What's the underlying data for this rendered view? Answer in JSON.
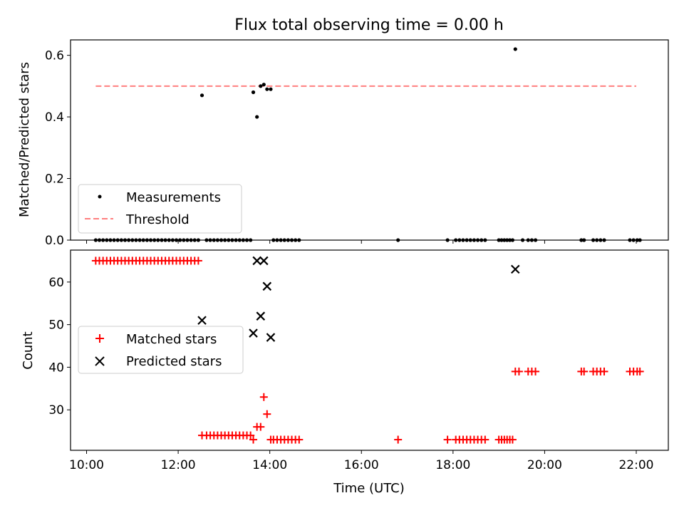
{
  "title": "Flux total observing time = 0.00 h",
  "colors": {
    "measure": "#000000",
    "threshold": "#ff7f7f",
    "matched": "#ff0000",
    "predicted": "#000000"
  },
  "chart_data": [
    {
      "type": "scatter",
      "title": "Flux total observing time = 0.00 h",
      "xlabel": "",
      "ylabel": "Matched/Predicted stars",
      "xlim": [
        9.65,
        22.7
      ],
      "ylim": [
        0,
        0.65
      ],
      "yticks": [
        0.0,
        0.2,
        0.4,
        0.6
      ],
      "ytick_labels": [
        "0.0",
        "0.2",
        "0.4",
        "0.6"
      ],
      "xticks": [
        10,
        12,
        14,
        16,
        18,
        20,
        22
      ],
      "legend_placement": "lower-left",
      "threshold": {
        "name": "Threshold",
        "y": 0.5,
        "x_range": [
          10.2,
          22.0
        ]
      },
      "series": [
        {
          "name": "Measurements",
          "points": [
            [
              10.2,
              0
            ],
            [
              10.28,
              0
            ],
            [
              10.36,
              0
            ],
            [
              10.44,
              0
            ],
            [
              10.52,
              0
            ],
            [
              10.6,
              0
            ],
            [
              10.68,
              0
            ],
            [
              10.76,
              0
            ],
            [
              10.84,
              0
            ],
            [
              10.92,
              0
            ],
            [
              11.0,
              0
            ],
            [
              11.08,
              0
            ],
            [
              11.16,
              0
            ],
            [
              11.24,
              0
            ],
            [
              11.32,
              0
            ],
            [
              11.4,
              0
            ],
            [
              11.48,
              0
            ],
            [
              11.56,
              0
            ],
            [
              11.64,
              0
            ],
            [
              11.72,
              0
            ],
            [
              11.8,
              0
            ],
            [
              11.88,
              0
            ],
            [
              11.96,
              0
            ],
            [
              12.04,
              0
            ],
            [
              12.12,
              0
            ],
            [
              12.2,
              0
            ],
            [
              12.28,
              0
            ],
            [
              12.36,
              0
            ],
            [
              12.44,
              0
            ],
            [
              12.52,
              0.47
            ],
            [
              12.62,
              0
            ],
            [
              12.7,
              0
            ],
            [
              12.78,
              0
            ],
            [
              12.86,
              0
            ],
            [
              12.94,
              0
            ],
            [
              13.02,
              0
            ],
            [
              13.1,
              0
            ],
            [
              13.18,
              0
            ],
            [
              13.26,
              0
            ],
            [
              13.34,
              0
            ],
            [
              13.42,
              0
            ],
            [
              13.5,
              0
            ],
            [
              13.58,
              0
            ],
            [
              13.64,
              0.48
            ],
            [
              13.72,
              0.4
            ],
            [
              13.8,
              0.5
            ],
            [
              13.87,
              0.505
            ],
            [
              13.94,
              0.49
            ],
            [
              14.02,
              0.49
            ],
            [
              14.08,
              0
            ],
            [
              14.16,
              0
            ],
            [
              14.24,
              0
            ],
            [
              14.32,
              0
            ],
            [
              14.4,
              0
            ],
            [
              14.48,
              0
            ],
            [
              14.56,
              0
            ],
            [
              14.64,
              0
            ],
            [
              16.8,
              0
            ],
            [
              17.88,
              0
            ],
            [
              18.06,
              0
            ],
            [
              18.14,
              0
            ],
            [
              18.22,
              0
            ],
            [
              18.3,
              0
            ],
            [
              18.38,
              0
            ],
            [
              18.46,
              0
            ],
            [
              18.54,
              0
            ],
            [
              18.62,
              0
            ],
            [
              18.7,
              0
            ],
            [
              19.0,
              0
            ],
            [
              19.06,
              0
            ],
            [
              19.12,
              0
            ],
            [
              19.18,
              0
            ],
            [
              19.24,
              0
            ],
            [
              19.3,
              0
            ],
            [
              19.36,
              0.62
            ],
            [
              19.52,
              0
            ],
            [
              19.64,
              0
            ],
            [
              19.72,
              0
            ],
            [
              19.8,
              0
            ],
            [
              20.8,
              0
            ],
            [
              20.86,
              0
            ],
            [
              21.06,
              0
            ],
            [
              21.14,
              0
            ],
            [
              21.22,
              0
            ],
            [
              21.3,
              0
            ],
            [
              21.86,
              0
            ],
            [
              21.94,
              0
            ],
            [
              22.02,
              0
            ],
            [
              22.08,
              0
            ]
          ]
        }
      ]
    },
    {
      "type": "scatter",
      "title": "",
      "xlabel": "Time (UTC)",
      "ylabel": "Count",
      "xlim": [
        9.65,
        22.7
      ],
      "ylim": [
        20.5,
        67.5
      ],
      "yticks": [
        30,
        40,
        50,
        60
      ],
      "xticks": [
        10,
        12,
        14,
        16,
        18,
        20,
        22
      ],
      "xtick_labels": [
        "10:00",
        "12:00",
        "14:00",
        "16:00",
        "18:00",
        "20:00",
        "22:00"
      ],
      "legend_placement": "center-left",
      "series": [
        {
          "name": "Matched stars",
          "points": [
            [
              10.2,
              65
            ],
            [
              10.28,
              65
            ],
            [
              10.36,
              65
            ],
            [
              10.44,
              65
            ],
            [
              10.52,
              65
            ],
            [
              10.6,
              65
            ],
            [
              10.68,
              65
            ],
            [
              10.76,
              65
            ],
            [
              10.84,
              65
            ],
            [
              10.92,
              65
            ],
            [
              11.0,
              65
            ],
            [
              11.08,
              65
            ],
            [
              11.16,
              65
            ],
            [
              11.24,
              65
            ],
            [
              11.32,
              65
            ],
            [
              11.4,
              65
            ],
            [
              11.48,
              65
            ],
            [
              11.56,
              65
            ],
            [
              11.64,
              65
            ],
            [
              11.72,
              65
            ],
            [
              11.8,
              65
            ],
            [
              11.88,
              65
            ],
            [
              11.96,
              65
            ],
            [
              12.04,
              65
            ],
            [
              12.12,
              65
            ],
            [
              12.2,
              65
            ],
            [
              12.28,
              65
            ],
            [
              12.36,
              65
            ],
            [
              12.44,
              65
            ],
            [
              12.52,
              24
            ],
            [
              12.62,
              24
            ],
            [
              12.7,
              24
            ],
            [
              12.78,
              24
            ],
            [
              12.86,
              24
            ],
            [
              12.94,
              24
            ],
            [
              13.02,
              24
            ],
            [
              13.1,
              24
            ],
            [
              13.18,
              24
            ],
            [
              13.26,
              24
            ],
            [
              13.34,
              24
            ],
            [
              13.42,
              24
            ],
            [
              13.5,
              24
            ],
            [
              13.58,
              24
            ],
            [
              13.64,
              23
            ],
            [
              13.72,
              26
            ],
            [
              13.8,
              26
            ],
            [
              13.87,
              33
            ],
            [
              13.94,
              29
            ],
            [
              14.02,
              23
            ],
            [
              14.08,
              23
            ],
            [
              14.16,
              23
            ],
            [
              14.24,
              23
            ],
            [
              14.32,
              23
            ],
            [
              14.4,
              23
            ],
            [
              14.48,
              23
            ],
            [
              14.56,
              23
            ],
            [
              14.64,
              23
            ],
            [
              16.8,
              23
            ],
            [
              17.88,
              23
            ],
            [
              18.06,
              23
            ],
            [
              18.14,
              23
            ],
            [
              18.22,
              23
            ],
            [
              18.3,
              23
            ],
            [
              18.38,
              23
            ],
            [
              18.46,
              23
            ],
            [
              18.54,
              23
            ],
            [
              18.62,
              23
            ],
            [
              18.7,
              23
            ],
            [
              19.0,
              23
            ],
            [
              19.06,
              23
            ],
            [
              19.12,
              23
            ],
            [
              19.18,
              23
            ],
            [
              19.24,
              23
            ],
            [
              19.3,
              23
            ],
            [
              19.36,
              39
            ],
            [
              19.44,
              39
            ],
            [
              19.64,
              39
            ],
            [
              19.72,
              39
            ],
            [
              19.8,
              39
            ],
            [
              20.8,
              39
            ],
            [
              20.86,
              39
            ],
            [
              21.06,
              39
            ],
            [
              21.14,
              39
            ],
            [
              21.22,
              39
            ],
            [
              21.3,
              39
            ],
            [
              21.86,
              39
            ],
            [
              21.94,
              39
            ],
            [
              22.02,
              39
            ],
            [
              22.08,
              39
            ]
          ]
        },
        {
          "name": "Predicted stars",
          "points": [
            [
              12.52,
              51
            ],
            [
              13.64,
              48
            ],
            [
              13.72,
              65
            ],
            [
              13.8,
              52
            ],
            [
              13.87,
              65
            ],
            [
              13.94,
              59
            ],
            [
              14.02,
              47
            ],
            [
              19.36,
              63
            ]
          ]
        }
      ]
    }
  ]
}
